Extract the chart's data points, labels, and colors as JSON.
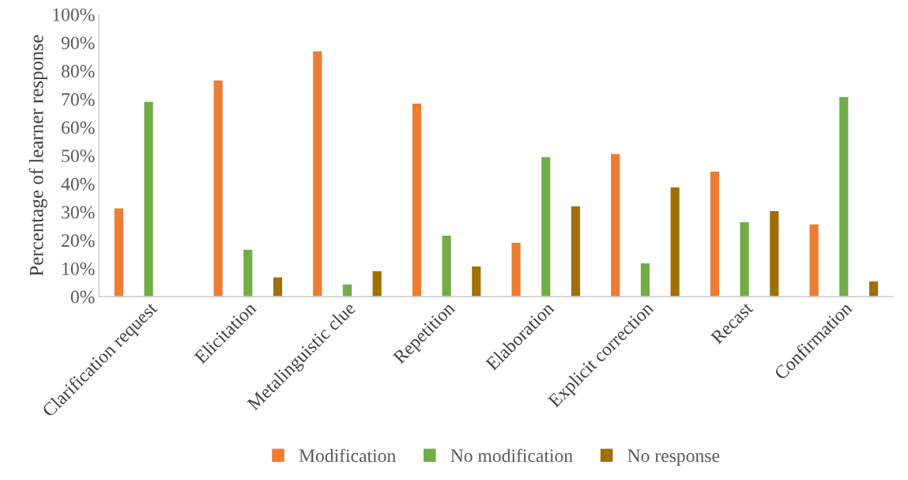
{
  "chart_data": {
    "type": "bar",
    "ylabel": "Percentage of learner response",
    "categories": [
      "Clarification request",
      "Elicitation",
      "Metalinguistic clue",
      "Repetition",
      "Elaboration",
      "Explicit correction",
      "Recast",
      "Confirmation"
    ],
    "series": [
      {
        "name": "Modification",
        "color": "#ed7d31",
        "values": [
          31.5,
          76.8,
          87.1,
          68.6,
          19.3,
          50.7,
          44.5,
          25.8
        ]
      },
      {
        "name": "No modification",
        "color": "#70ad47",
        "values": [
          69.2,
          16.8,
          4.5,
          21.8,
          49.6,
          12.0,
          26.6,
          70.9
        ]
      },
      {
        "name": "No response",
        "color": "#a07000",
        "values": [
          null,
          7.0,
          9.2,
          10.9,
          32.2,
          38.9,
          30.5,
          5.6
        ]
      }
    ],
    "ylim": [
      0,
      100
    ],
    "yticks": [
      {
        "value": 0,
        "label": "0%"
      },
      {
        "value": 10,
        "label": "10%"
      },
      {
        "value": 20,
        "label": "20%"
      },
      {
        "value": 30,
        "label": "30%"
      },
      {
        "value": 40,
        "label": "40%"
      },
      {
        "value": 50,
        "label": "50%"
      },
      {
        "value": 60,
        "label": "60%"
      },
      {
        "value": 70,
        "label": "70%"
      },
      {
        "value": 80,
        "label": "80%"
      },
      {
        "value": 90,
        "label": "90%"
      },
      {
        "value": 100,
        "label": "100%"
      }
    ],
    "grid": false,
    "legend": "bottom"
  }
}
